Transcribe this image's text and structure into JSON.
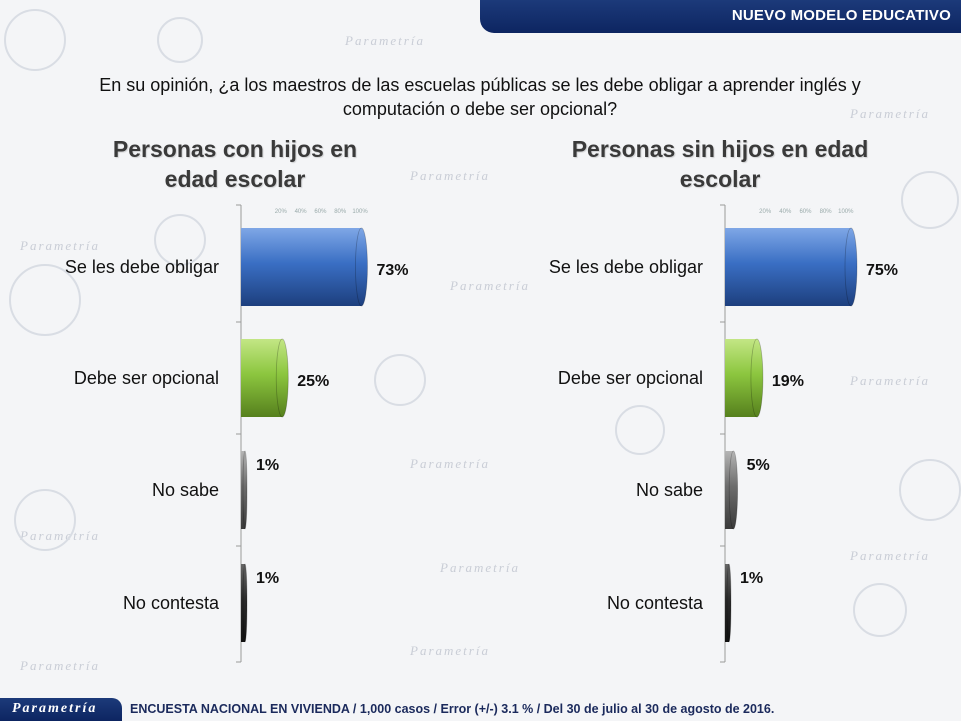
{
  "header": {
    "title": "NUEVO MODELO EDUCATIVO"
  },
  "question": "En su opinión, ¿a los maestros de las escuelas públicas se les debe obligar a aprender inglés y computación o debe ser opcional?",
  "footer": {
    "brand": "Parametría",
    "note": "ENCUESTA NACIONAL EN VIVIENDA / 1,000 casos / Error (+/-) 3.1 % / Del 30 de julio al 30 de agosto de 2016."
  },
  "watermark": {
    "text": "Parametría"
  },
  "colors": {
    "obligar": "#3a6fc4",
    "opcional": "#8cc63f",
    "no_sabe": "#6d6d6d",
    "no_contesta": "#2b2b2b",
    "header": "#0d2561"
  },
  "chart_data": [
    {
      "type": "bar",
      "orientation": "horizontal",
      "title": "Personas con hijos en edad escolar",
      "categories": [
        "Se les debe obligar",
        "Debe ser opcional",
        "No sabe",
        "No contesta"
      ],
      "values": [
        73,
        25,
        1,
        1
      ],
      "value_labels": [
        "73%",
        "25%",
        "1%",
        "1%"
      ],
      "xlim": [
        0,
        100
      ],
      "ticks": [
        "20%",
        "40%",
        "60%",
        "80%",
        "100%"
      ]
    },
    {
      "type": "bar",
      "orientation": "horizontal",
      "title": "Personas sin hijos en edad escolar",
      "categories": [
        "Se les debe obligar",
        "Debe ser opcional",
        "No sabe",
        "No contesta"
      ],
      "values": [
        75,
        19,
        5,
        1
      ],
      "value_labels": [
        "75%",
        "19%",
        "5%",
        "1%"
      ],
      "xlim": [
        0,
        100
      ],
      "ticks": [
        "20%",
        "40%",
        "60%",
        "80%",
        "100%"
      ]
    }
  ]
}
